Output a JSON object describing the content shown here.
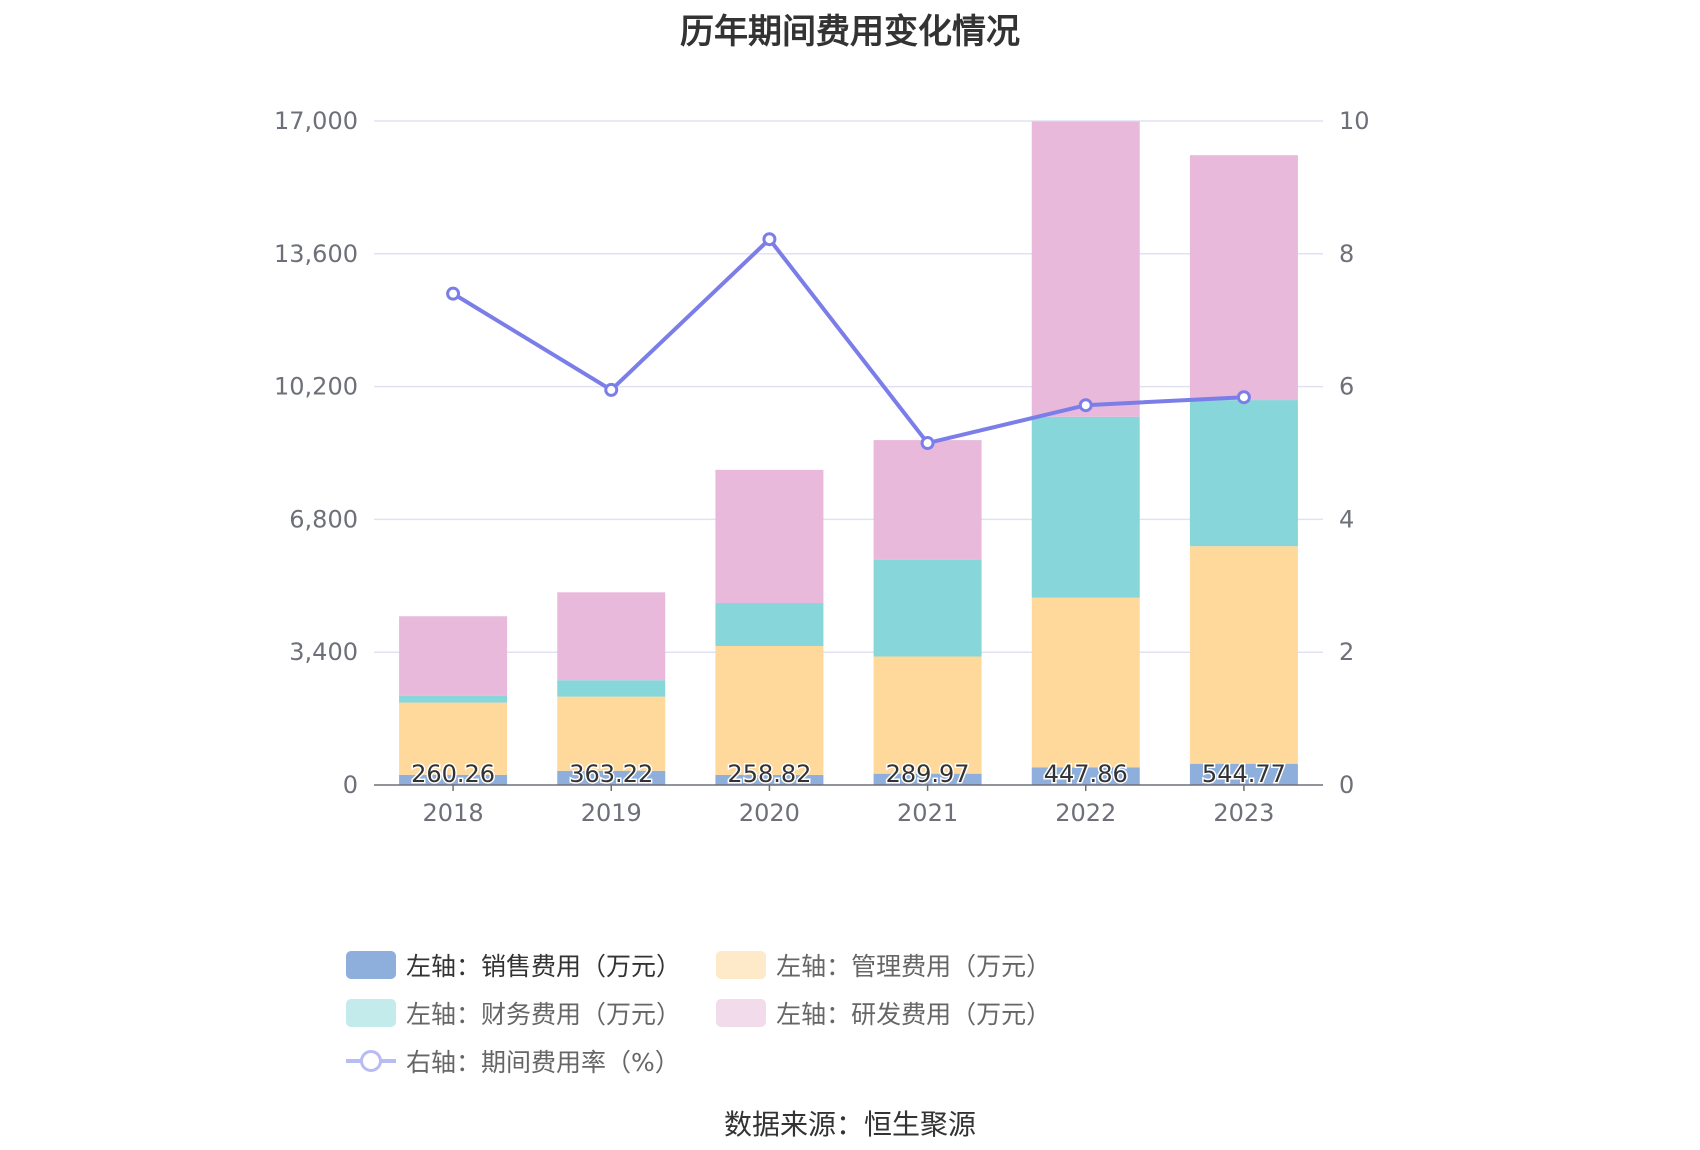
{
  "title": "历年期间费用变化情况",
  "source": "数据来源：恒生聚源",
  "chart_data": {
    "type": "bar",
    "stacked": true,
    "categories": [
      "2018",
      "2019",
      "2020",
      "2021",
      "2022",
      "2023"
    ],
    "y_left": {
      "ylim": [
        0,
        17000
      ],
      "ticks": [
        "0",
        "3,400",
        "6,800",
        "10,200",
        "13,600",
        "17,000"
      ]
    },
    "y_right": {
      "ylim": [
        0,
        10
      ],
      "ticks": [
        "0",
        "2",
        "4",
        "6",
        "8",
        "10"
      ]
    },
    "grid": true,
    "legend_position": "bottom",
    "series": [
      {
        "name": "左轴：销售费用（万元）",
        "type": "bar",
        "axis": "left",
        "color": "#8eaedb",
        "values": [
          260.26,
          363.22,
          258.82,
          289.97,
          447.86,
          544.77
        ],
        "labels": [
          "260.26",
          "363.22",
          "258.82",
          "289.97",
          "447.86",
          "544.77"
        ]
      },
      {
        "name": "左轴：管理费用（万元）",
        "type": "bar",
        "axis": "left",
        "color": "#fed99b",
        "values": [
          1850,
          1900,
          3300,
          3000,
          4350,
          5570
        ]
      },
      {
        "name": "左轴：财务费用（万元）",
        "type": "bar",
        "axis": "left",
        "color": "#87d6da",
        "values": [
          170,
          420,
          1100,
          2480,
          4630,
          3740
        ]
      },
      {
        "name": "左轴：研发费用（万元）",
        "type": "bar",
        "axis": "left",
        "color": "#e8b9da",
        "values": [
          2040,
          2250,
          3410,
          3060,
          7560,
          6270
        ]
      },
      {
        "name": "右轴：期间费用率（%）",
        "type": "line",
        "axis": "right",
        "color": "#7b7ee8",
        "values": [
          7.4,
          5.95,
          8.22,
          5.15,
          5.72,
          5.84
        ]
      }
    ]
  }
}
